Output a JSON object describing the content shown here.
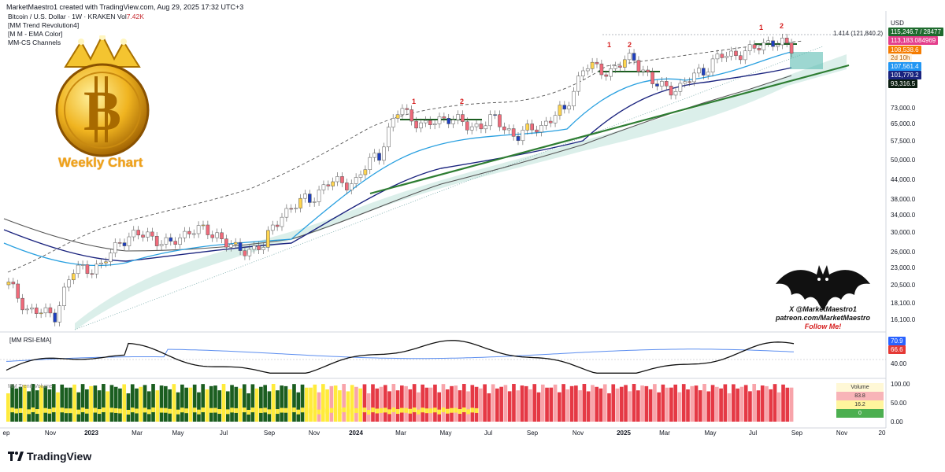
{
  "header": {
    "created_line": "MarketMaestro1 created with TradingView.com, Aug 29, 2025 17:32 UTC+3"
  },
  "legend": {
    "symbol_line": "Bitcoin / U.S. Dollar · 1W · KRAKEN",
    "vol_label": "Vol",
    "vol_value": "7.42K",
    "indicators": [
      "[MM Trend Revolution4]",
      "[M M - EMA Color]",
      "MM-CS Channels"
    ]
  },
  "overlay": {
    "weekly_label": "Weekly Chart",
    "watermark_lines": [
      "X @MarketMaestro1",
      "patreon.com/MarketMaestro"
    ],
    "follow": "Follow Me!"
  },
  "brand": {
    "name": "TradingView"
  },
  "price_axis": {
    "currency": "USD",
    "fib_label": "1.414 (121,840.2)",
    "labels": [
      "73,000.0",
      "65,000.0",
      "57,500.0",
      "50,000.0",
      "44,000.0",
      "38,000.0",
      "34,000.0",
      "30,000.0",
      "26,000.0",
      "23,000.0",
      "20,500.0",
      "18,100.0",
      "16,100.0"
    ],
    "tags": [
      {
        "text": "115,246.7 / 28477",
        "bg": "#1e6b2e"
      },
      {
        "text": "113,183.084969",
        "bg": "#e43f8c"
      },
      {
        "text": "108,538.6",
        "bg": "#f57c00"
      },
      {
        "text": "2d 10h",
        "bg": "#fff3e0",
        "fg": "#b35c00"
      },
      {
        "text": "107,561.4",
        "bg": "#2196f3"
      },
      {
        "text": "101,779.2",
        "bg": "#1a237e"
      },
      {
        "text": "93,316.5",
        "bg": "#0b1d10"
      }
    ]
  },
  "rsi_panel": {
    "title": "[MM RSI-EMA]",
    "tags": [
      {
        "text": "70.9",
        "bg": "#2962ff"
      },
      {
        "text": "66.6",
        "bg": "#e53935"
      }
    ],
    "axis": "40.00"
  },
  "volume_panel": {
    "title": "MM Trend Volume",
    "axis": [
      "100.00",
      "50.00",
      "0.00"
    ],
    "box": [
      {
        "text": "Volume",
        "bg": "#fff8d6",
        "fg": "#333"
      },
      {
        "text": "83.8",
        "bg": "#f8b4b8",
        "fg": "#333"
      },
      {
        "text": "16.2",
        "bg": "#fff59d",
        "fg": "#333"
      },
      {
        "text": "0",
        "bg": "#4caf50",
        "fg": "#fff"
      }
    ]
  },
  "time_axis": {
    "labels": [
      {
        "t": "ep",
        "x": 8,
        "bold": false
      },
      {
        "t": "Nov",
        "x": 64,
        "bold": false
      },
      {
        "t": "2023",
        "x": 116,
        "bold": true
      },
      {
        "t": "Mar",
        "x": 174,
        "bold": false
      },
      {
        "t": "May",
        "x": 226,
        "bold": false
      },
      {
        "t": "Jul",
        "x": 284,
        "bold": false
      },
      {
        "t": "Sep",
        "x": 342,
        "bold": false
      },
      {
        "t": "Nov",
        "x": 399,
        "bold": false
      },
      {
        "t": "2024",
        "x": 452,
        "bold": true
      },
      {
        "t": "Mar",
        "x": 509,
        "bold": false
      },
      {
        "t": "May",
        "x": 566,
        "bold": false
      },
      {
        "t": "Jul",
        "x": 620,
        "bold": false
      },
      {
        "t": "Sep",
        "x": 676,
        "bold": false
      },
      {
        "t": "Nov",
        "x": 734,
        "bold": false
      },
      {
        "t": "2025",
        "x": 792,
        "bold": true
      },
      {
        "t": "Mar",
        "x": 844,
        "bold": false
      },
      {
        "t": "May",
        "x": 902,
        "bold": false
      },
      {
        "t": "Jul",
        "x": 956,
        "bold": false
      },
      {
        "t": "Sep",
        "x": 1012,
        "bold": false
      },
      {
        "t": "Nov",
        "x": 1069,
        "bold": false
      },
      {
        "t": "20",
        "x": 1120,
        "bold": false
      }
    ]
  },
  "chart_data": {
    "type": "candlestick",
    "symbol": "BTCUSD",
    "timeframe": "1W",
    "exchange": "KRAKEN",
    "scale": "log",
    "ylim": [
      15000,
      125000
    ],
    "series": [
      {
        "name": "BTC weekly close (approx.)",
        "x": [
          "2022-10",
          "2022-11",
          "2022-12",
          "2023-01",
          "2023-02",
          "2023-03",
          "2023-04",
          "2023-05",
          "2023-06",
          "2023-07",
          "2023-08",
          "2023-09",
          "2023-10",
          "2023-11",
          "2023-12",
          "2024-01",
          "2024-02",
          "2024-03",
          "2024-04",
          "2024-05",
          "2024-06",
          "2024-07",
          "2024-08",
          "2024-09",
          "2024-10",
          "2024-11",
          "2024-12",
          "2025-01",
          "2025-02",
          "2025-03",
          "2025-04",
          "2025-05",
          "2025-06",
          "2025-07",
          "2025-08"
        ],
        "values": [
          20500,
          17000,
          16600,
          23000,
          23200,
          28500,
          29300,
          27200,
          30500,
          29300,
          26000,
          27000,
          34600,
          37700,
          42300,
          42500,
          52000,
          71000,
          63000,
          67500,
          62700,
          66000,
          59000,
          63300,
          70200,
          96400,
          93400,
          102400,
          84300,
          82500,
          94200,
          104600,
          107100,
          115800,
          108500
        ]
      }
    ],
    "annotations": [
      "1",
      "2",
      "1",
      "2",
      "1",
      "2"
    ],
    "fib_level": {
      "ratio": 1.414,
      "price": 121840.2
    },
    "rsi_last": [
      70.9,
      66.6
    ],
    "volume_buckets": {
      "red": 83.8,
      "yellow": 16.2,
      "green": 0
    }
  }
}
